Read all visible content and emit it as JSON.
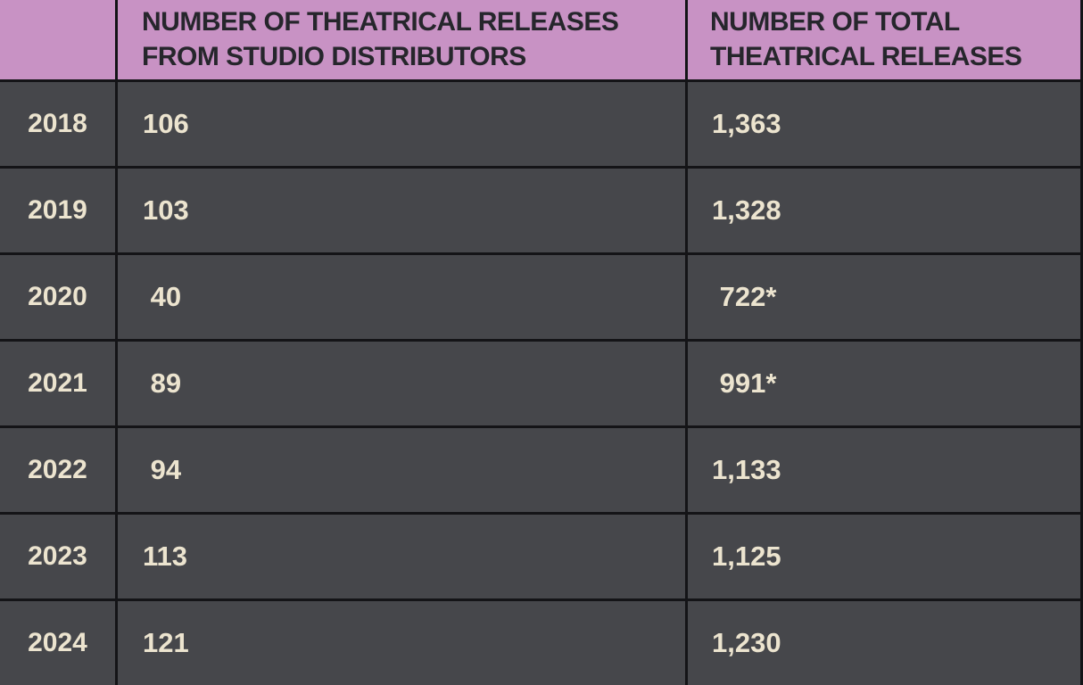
{
  "colors": {
    "header_bg": "#c892c4",
    "header_text": "#26262c",
    "row_bg": "#46474b",
    "border": "#141417",
    "value_text": "#ece4cf"
  },
  "table": {
    "header": {
      "year_label": "",
      "studio_col": {
        "line1": "NUMBER OF THEATRICAL RELEASES",
        "line2": "FROM STUDIO DISTRIBUTORS"
      },
      "total_col": {
        "line1": "NUMBER OF TOTAL",
        "line2": "THEATRICAL RELEASES"
      }
    },
    "rows": [
      {
        "year": "2018",
        "studio_releases": "106",
        "total_releases": "1,363"
      },
      {
        "year": "2019",
        "studio_releases": "103",
        "total_releases": "1,328"
      },
      {
        "year": "2020",
        "studio_releases": " 40",
        "total_releases": " 722*"
      },
      {
        "year": "2021",
        "studio_releases": " 89",
        "total_releases": " 991*"
      },
      {
        "year": "2022",
        "studio_releases": " 94",
        "total_releases": "1,133"
      },
      {
        "year": "2023",
        "studio_releases": "113",
        "total_releases": "1,125"
      },
      {
        "year": "2024",
        "studio_releases": "121",
        "total_releases": "1,230"
      }
    ]
  },
  "chart_data": {
    "type": "table",
    "categories": [
      "2018",
      "2019",
      "2020",
      "2021",
      "2022",
      "2023",
      "2024"
    ],
    "series": [
      {
        "name": "NUMBER OF THEATRICAL RELEASES FROM STUDIO DISTRIBUTORS",
        "values": [
          106,
          103,
          40,
          89,
          94,
          113,
          121
        ]
      },
      {
        "name": "NUMBER OF TOTAL THEATRICAL RELEASES",
        "values": [
          1363,
          1328,
          722,
          991,
          1133,
          1125,
          1230
        ]
      }
    ],
    "annotations": [
      "2020 total shown as 722* and 2021 total shown as 991* (asterisk footnote markers)"
    ],
    "legend_position": "none",
    "grid": true
  }
}
